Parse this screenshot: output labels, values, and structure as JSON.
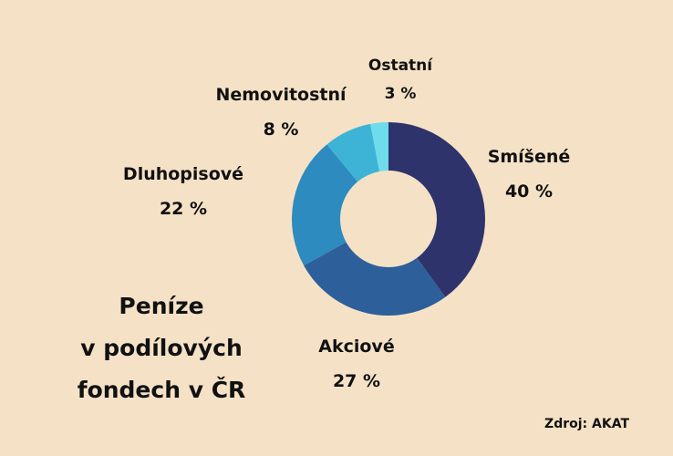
{
  "chart_data": {
    "type": "pie",
    "donut": true,
    "title_lines": [
      "Peníze",
      "v podílových",
      "fondech v ČR"
    ],
    "source": "Zdroj: AKAT",
    "slices": [
      {
        "label": "Smíšené",
        "value": 40,
        "value_text": "40 %",
        "color": "#2f336b"
      },
      {
        "label": "Akciové",
        "value": 27,
        "value_text": "27 %",
        "color": "#2d5f9a"
      },
      {
        "label": "Dluhopisové",
        "value": 22,
        "value_text": "22 %",
        "color": "#2e8bbf"
      },
      {
        "label": "Nemovitostní",
        "value": 8,
        "value_text": "8 %",
        "color": "#3db4d6"
      },
      {
        "label": "Ostatní",
        "value": 3,
        "value_text": "3 %",
        "color": "#6fdcec"
      }
    ]
  }
}
